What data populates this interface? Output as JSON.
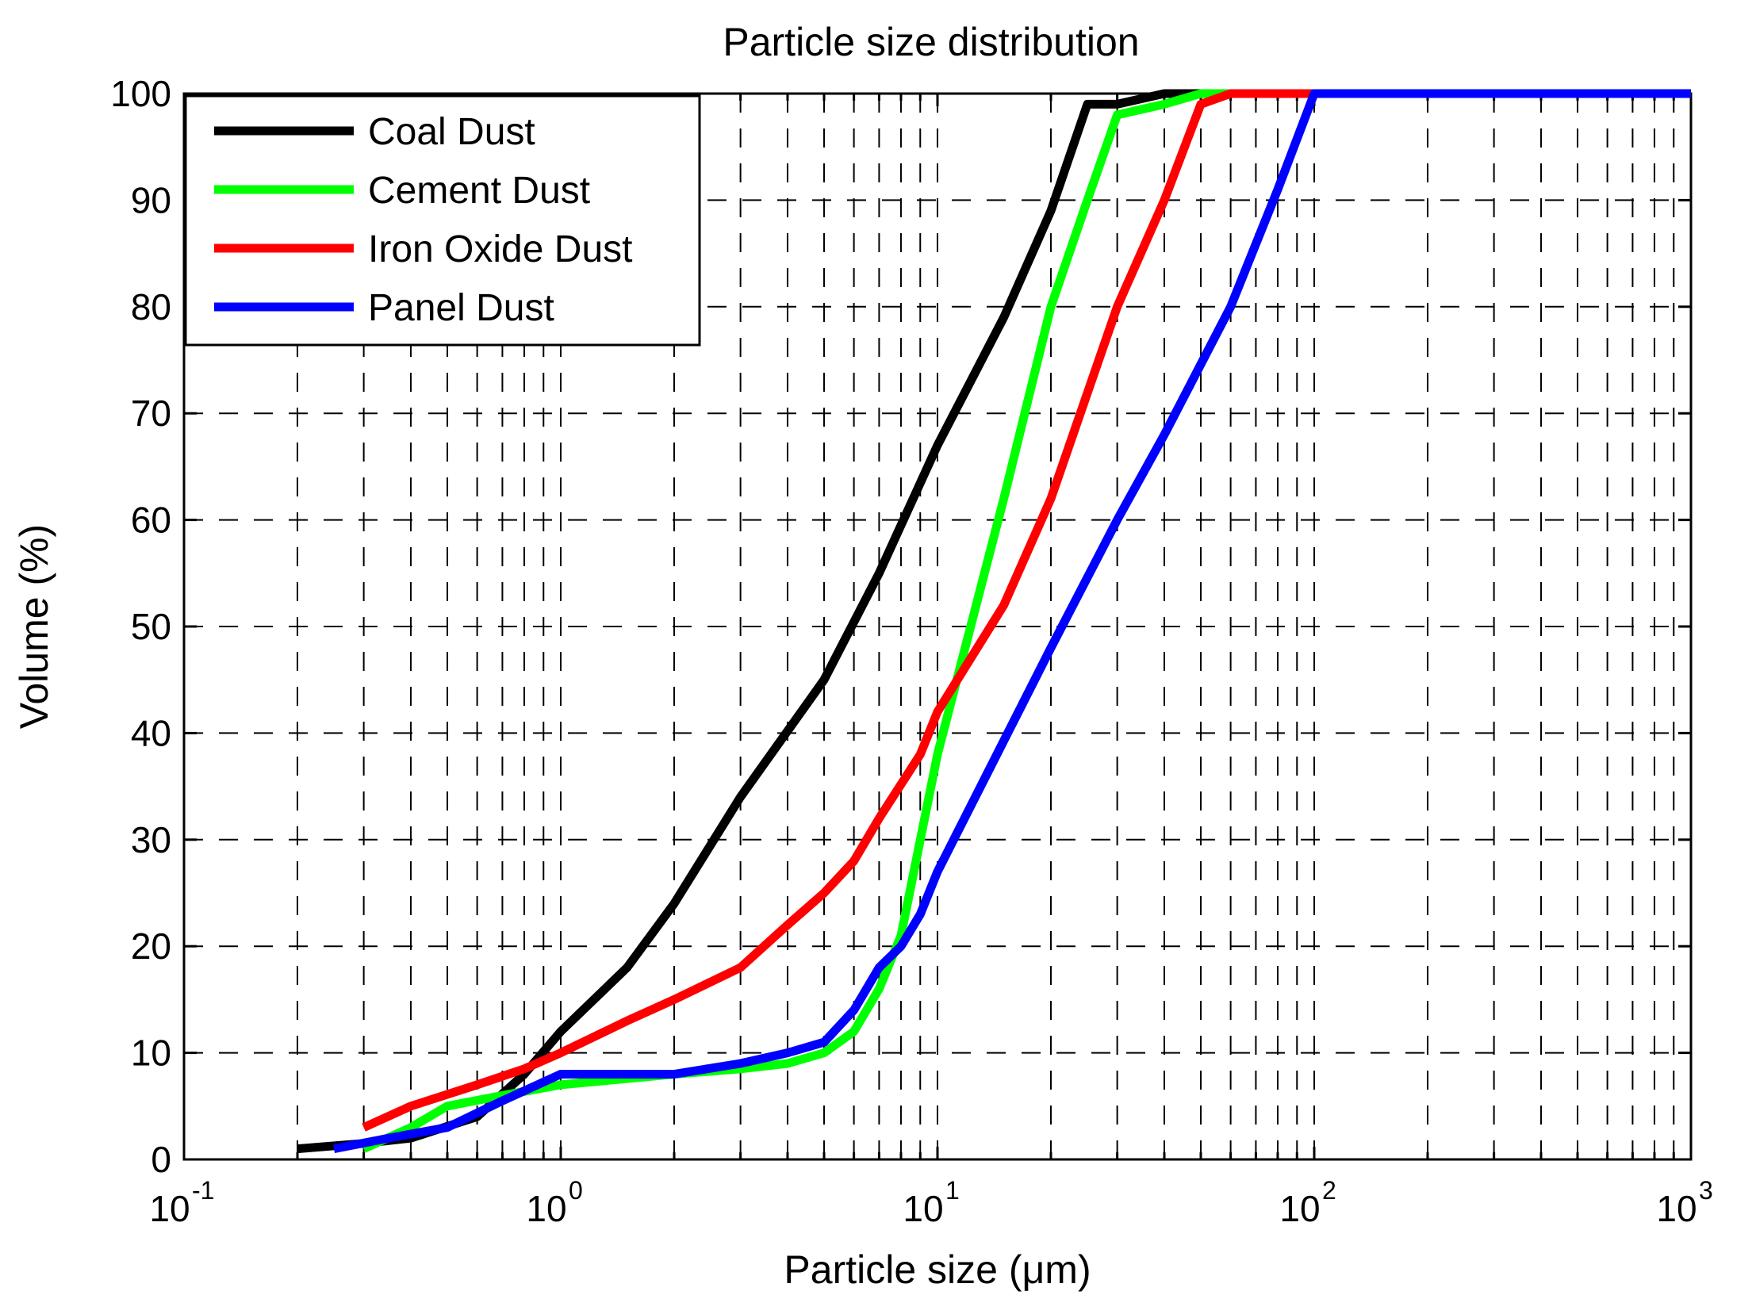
{
  "chart_data": {
    "type": "line",
    "title": "Particle size distribution",
    "xlabel": "Particle size (μm)",
    "ylabel": "Volume (%)",
    "xscale": "log",
    "xlim": [
      0.1,
      1000
    ],
    "ylim": [
      0,
      100
    ],
    "grid": true,
    "legend_position": "top-left",
    "x_ticks": [
      {
        "base": "10",
        "exp": "-1"
      },
      {
        "base": "10",
        "exp": "0"
      },
      {
        "base": "10",
        "exp": "1"
      },
      {
        "base": "10",
        "exp": "2"
      },
      {
        "base": "10",
        "exp": "3"
      }
    ],
    "y_ticks": [
      "0",
      "10",
      "20",
      "30",
      "40",
      "50",
      "60",
      "70",
      "80",
      "90",
      "100"
    ],
    "series": [
      {
        "name": "Coal Dust",
        "color": "#000000",
        "x": [
          0.2,
          0.3,
          0.4,
          0.6,
          0.8,
          1.0,
          1.5,
          2,
          3,
          5,
          7,
          10,
          15,
          20,
          25,
          30,
          40,
          60,
          100,
          1000
        ],
        "y": [
          1,
          1.5,
          2,
          4,
          8,
          12,
          18,
          24,
          34,
          45,
          55,
          67,
          79,
          89,
          99,
          99,
          100,
          100,
          100,
          100
        ]
      },
      {
        "name": "Cement Dust",
        "color": "#00ff00",
        "x": [
          0.3,
          0.4,
          0.5,
          0.7,
          1.0,
          2,
          3,
          4,
          5,
          6,
          7,
          8,
          10,
          15,
          20,
          25,
          30,
          40,
          50,
          100,
          1000
        ],
        "y": [
          1,
          3,
          5,
          6,
          7,
          8,
          8.5,
          9,
          10,
          12,
          16,
          21,
          38,
          62,
          80,
          90,
          98,
          99,
          100,
          100,
          100
        ]
      },
      {
        "name": "Iron Oxide Dust",
        "color": "#ff0000",
        "x": [
          0.3,
          0.4,
          0.6,
          0.8,
          1.0,
          1.5,
          2,
          3,
          4,
          5,
          6,
          7,
          9,
          10,
          15,
          20,
          30,
          40,
          50,
          60,
          100,
          1000
        ],
        "y": [
          3,
          5,
          7,
          8.5,
          10,
          13,
          15,
          18,
          22,
          25,
          28,
          32,
          38,
          42,
          52,
          62,
          80,
          90,
          99,
          100,
          100,
          100
        ]
      },
      {
        "name": "Panel Dust",
        "color": "#0000ff",
        "x": [
          0.25,
          0.35,
          0.5,
          0.7,
          1.0,
          2,
          3,
          4,
          5,
          6,
          7,
          8,
          9,
          10,
          20,
          30,
          40,
          60,
          80,
          100,
          1000
        ],
        "y": [
          1,
          2,
          3,
          5.5,
          8,
          8,
          9,
          10,
          11,
          14,
          18,
          20,
          23,
          27,
          48,
          60,
          68,
          80,
          91,
          100,
          100
        ]
      }
    ]
  }
}
